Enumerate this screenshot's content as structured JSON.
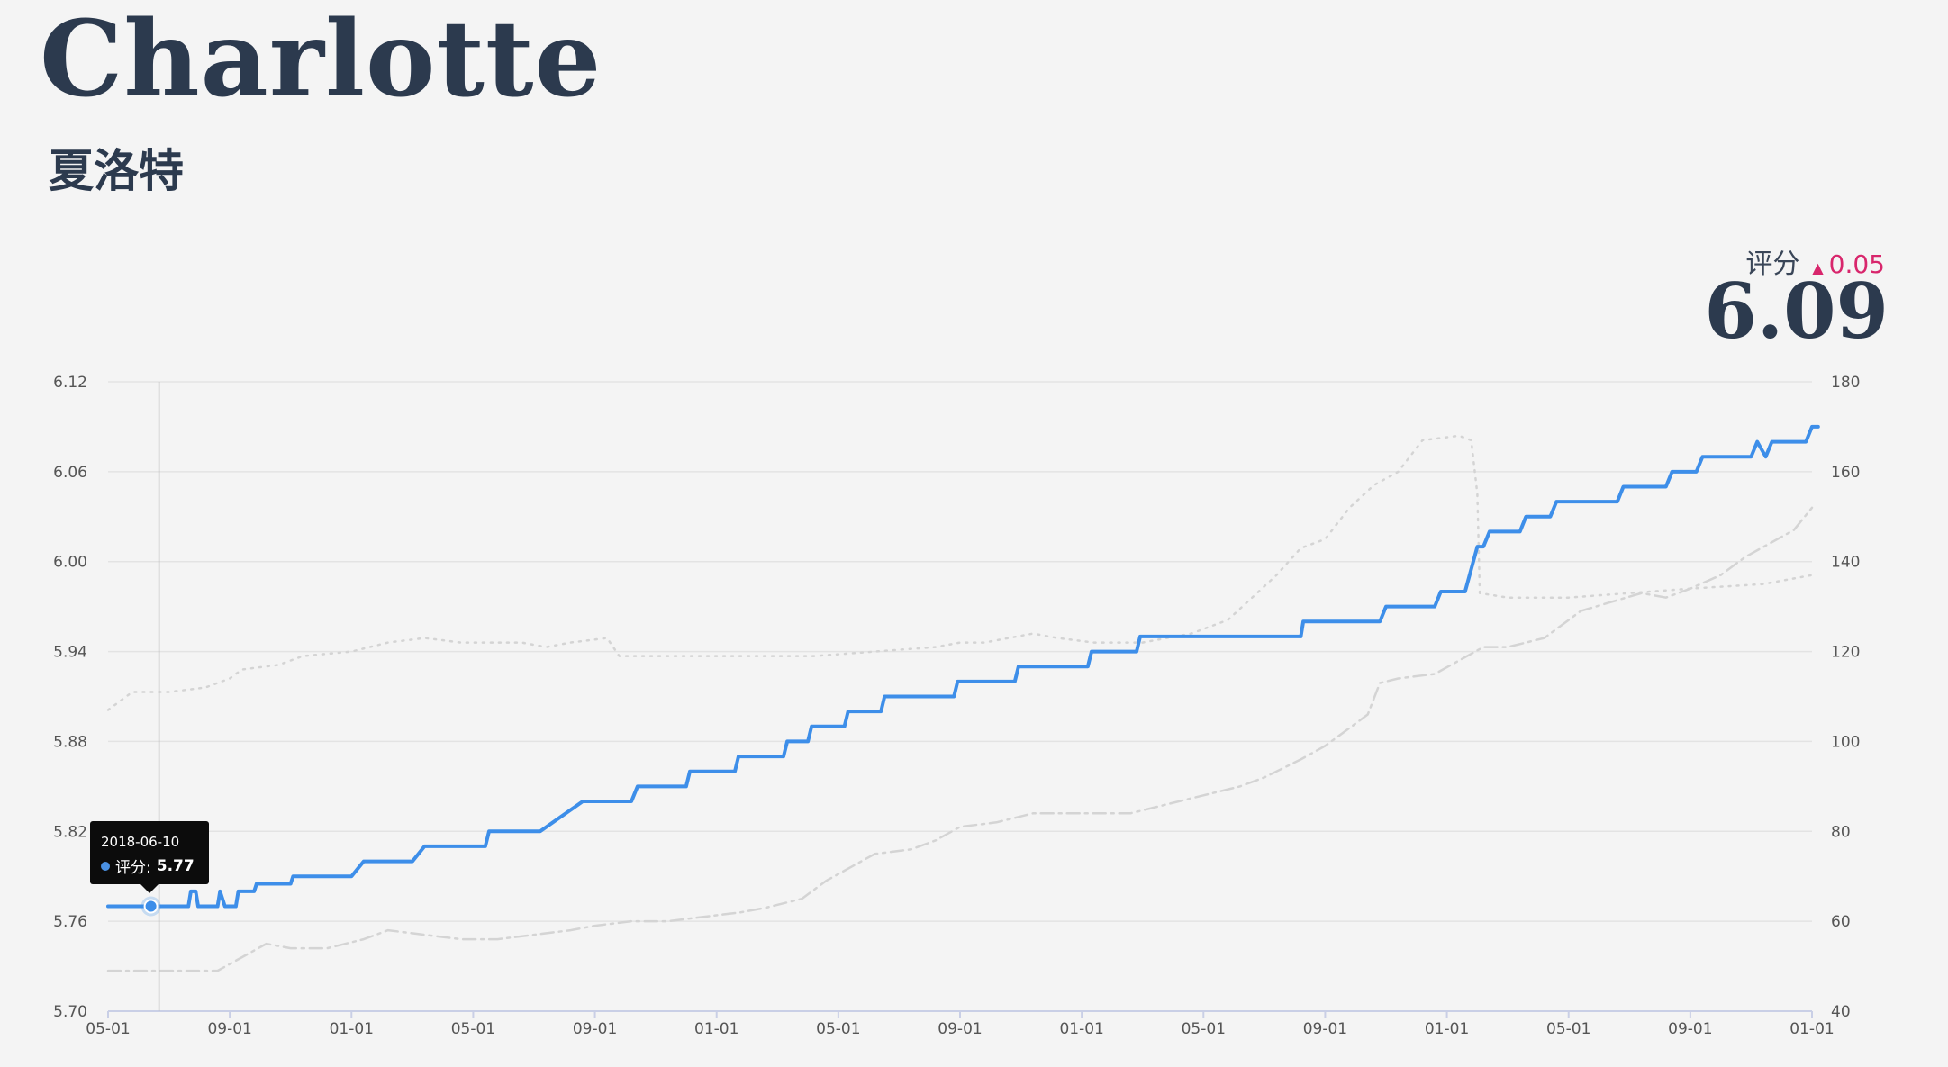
{
  "header": {
    "title": "Charlotte",
    "subtitle": "夏洛特"
  },
  "score": {
    "label": "评分",
    "delta": "0.05",
    "value": "6.09"
  },
  "tooltip": {
    "date": "2018-06-10",
    "label": "评分:",
    "value": "5.77"
  },
  "colors": {
    "rating": "#3d8ee9",
    "delta": "#d8266c",
    "grey": "#d4d4d4",
    "grid": "#e3e3e3",
    "axis": "#c9cfe6"
  },
  "chart_data": {
    "type": "line",
    "title": "",
    "xlabel": "",
    "ylabel": "",
    "x_ticks": [
      "05-01",
      "09-01",
      "01-01",
      "05-01",
      "09-01",
      "01-01",
      "05-01",
      "09-01",
      "01-01",
      "05-01",
      "09-01",
      "01-01",
      "05-01",
      "09-01",
      "01-01"
    ],
    "y_left_ticks": [
      "6.12",
      "6.06",
      "6.00",
      "5.94",
      "5.88",
      "5.82",
      "5.76",
      "5.70"
    ],
    "y_right_ticks": [
      "180",
      "160",
      "140",
      "120",
      "100",
      "80",
      "60",
      "40"
    ],
    "ylim_left": [
      5.7,
      6.12
    ],
    "ylim_right": [
      40,
      180
    ],
    "grid": true,
    "highlight": {
      "x": 0.33,
      "y": 5.77
    },
    "series": [
      {
        "axis": "left",
        "style": "solid",
        "points": [
          [
            0,
            5.77
          ],
          [
            0.66,
            5.77
          ],
          [
            0.68,
            5.78
          ],
          [
            0.72,
            5.78
          ],
          [
            0.74,
            5.77
          ],
          [
            0.9,
            5.77
          ],
          [
            0.92,
            5.78
          ],
          [
            0.96,
            5.77
          ],
          [
            1.05,
            5.77
          ],
          [
            1.07,
            5.78
          ],
          [
            1.2,
            5.78
          ],
          [
            1.22,
            5.785
          ],
          [
            1.5,
            5.785
          ],
          [
            1.52,
            5.79
          ],
          [
            2.0,
            5.79
          ],
          [
            2.1,
            5.8
          ],
          [
            2.5,
            5.8
          ],
          [
            2.6,
            5.81
          ],
          [
            3.1,
            5.81
          ],
          [
            3.13,
            5.82
          ],
          [
            3.55,
            5.82
          ],
          [
            3.9,
            5.84
          ],
          [
            4.3,
            5.84
          ],
          [
            4.35,
            5.85
          ],
          [
            4.75,
            5.85
          ],
          [
            4.78,
            5.86
          ],
          [
            5.15,
            5.86
          ],
          [
            5.18,
            5.87
          ],
          [
            5.55,
            5.87
          ],
          [
            5.58,
            5.88
          ],
          [
            5.75,
            5.88
          ],
          [
            5.78,
            5.89
          ],
          [
            6.05,
            5.89
          ],
          [
            6.08,
            5.9
          ],
          [
            6.35,
            5.9
          ],
          [
            6.38,
            5.91
          ],
          [
            6.95,
            5.91
          ],
          [
            6.98,
            5.92
          ],
          [
            7.45,
            5.92
          ],
          [
            7.48,
            5.93
          ],
          [
            8.05,
            5.93
          ],
          [
            8.08,
            5.94
          ],
          [
            8.45,
            5.94
          ],
          [
            8.48,
            5.95
          ],
          [
            9.8,
            5.95
          ],
          [
            9.82,
            5.96
          ],
          [
            10.45,
            5.96
          ],
          [
            10.5,
            5.97
          ],
          [
            10.9,
            5.97
          ],
          [
            10.95,
            5.98
          ],
          [
            11.15,
            5.98
          ],
          [
            11.25,
            6.01
          ],
          [
            11.3,
            6.01
          ],
          [
            11.35,
            6.02
          ],
          [
            11.6,
            6.02
          ],
          [
            11.65,
            6.03
          ],
          [
            11.85,
            6.03
          ],
          [
            11.9,
            6.04
          ],
          [
            12.4,
            6.04
          ],
          [
            12.45,
            6.05
          ],
          [
            12.8,
            6.05
          ],
          [
            12.85,
            6.06
          ],
          [
            13.05,
            6.06
          ],
          [
            13.1,
            6.07
          ],
          [
            13.5,
            6.07
          ],
          [
            13.55,
            6.08
          ],
          [
            13.62,
            6.07
          ],
          [
            13.67,
            6.08
          ],
          [
            13.95,
            6.08
          ],
          [
            14.0,
            6.09
          ],
          [
            14.05,
            6.09
          ]
        ]
      },
      {
        "axis": "right",
        "style": "dotted",
        "points": [
          [
            0,
            107
          ],
          [
            0.2,
            111
          ],
          [
            0.5,
            111
          ],
          [
            0.8,
            112
          ],
          [
            1.0,
            114
          ],
          [
            1.1,
            116
          ],
          [
            1.4,
            117
          ],
          [
            1.6,
            119
          ],
          [
            2.0,
            120
          ],
          [
            2.3,
            122
          ],
          [
            2.6,
            123
          ],
          [
            2.9,
            122
          ],
          [
            3.4,
            122
          ],
          [
            3.6,
            121
          ],
          [
            3.8,
            122
          ],
          [
            4.1,
            123
          ],
          [
            4.2,
            119
          ],
          [
            4.6,
            119
          ],
          [
            5.2,
            119
          ],
          [
            5.8,
            119
          ],
          [
            6.3,
            120
          ],
          [
            6.8,
            121
          ],
          [
            7.0,
            122
          ],
          [
            7.2,
            122
          ],
          [
            7.4,
            123
          ],
          [
            7.6,
            124
          ],
          [
            7.8,
            123
          ],
          [
            8.1,
            122
          ],
          [
            8.5,
            122
          ],
          [
            8.9,
            124
          ],
          [
            9.2,
            127
          ],
          [
            9.4,
            132
          ],
          [
            9.6,
            137
          ],
          [
            9.8,
            143
          ],
          [
            10.0,
            145
          ],
          [
            10.2,
            152
          ],
          [
            10.4,
            157
          ],
          [
            10.6,
            160
          ],
          [
            10.8,
            167
          ],
          [
            11.1,
            168
          ],
          [
            11.2,
            167
          ],
          [
            11.25,
            155
          ],
          [
            11.27,
            133
          ],
          [
            11.5,
            132
          ],
          [
            12.0,
            132
          ],
          [
            12.5,
            133
          ],
          [
            13.0,
            134
          ],
          [
            13.6,
            135
          ],
          [
            14.0,
            137
          ]
        ]
      },
      {
        "axis": "right",
        "style": "dashdot",
        "points": [
          [
            0,
            49
          ],
          [
            0.5,
            49
          ],
          [
            0.9,
            49
          ],
          [
            1.1,
            52
          ],
          [
            1.3,
            55
          ],
          [
            1.5,
            54
          ],
          [
            1.8,
            54
          ],
          [
            2.1,
            56
          ],
          [
            2.3,
            58
          ],
          [
            2.6,
            57
          ],
          [
            2.9,
            56
          ],
          [
            3.2,
            56
          ],
          [
            3.5,
            57
          ],
          [
            3.8,
            58
          ],
          [
            4.0,
            59
          ],
          [
            4.3,
            60
          ],
          [
            4.6,
            60
          ],
          [
            4.9,
            61
          ],
          [
            5.2,
            62
          ],
          [
            5.4,
            63
          ],
          [
            5.7,
            65
          ],
          [
            5.9,
            69
          ],
          [
            6.1,
            72
          ],
          [
            6.3,
            75
          ],
          [
            6.6,
            76
          ],
          [
            6.8,
            78
          ],
          [
            7.0,
            81
          ],
          [
            7.3,
            82
          ],
          [
            7.6,
            84
          ],
          [
            7.8,
            84
          ],
          [
            8.1,
            84
          ],
          [
            8.4,
            84
          ],
          [
            8.7,
            86
          ],
          [
            9.0,
            88
          ],
          [
            9.3,
            90
          ],
          [
            9.5,
            92
          ],
          [
            9.8,
            96
          ],
          [
            10.0,
            99
          ],
          [
            10.2,
            103
          ],
          [
            10.35,
            106
          ],
          [
            10.45,
            113
          ],
          [
            10.6,
            114
          ],
          [
            10.9,
            115
          ],
          [
            11.1,
            118
          ],
          [
            11.3,
            121
          ],
          [
            11.5,
            121
          ],
          [
            11.8,
            123
          ],
          [
            11.95,
            126
          ],
          [
            12.1,
            129
          ],
          [
            12.35,
            131
          ],
          [
            12.6,
            133
          ],
          [
            12.8,
            132
          ],
          [
            13.0,
            134
          ],
          [
            13.25,
            137
          ],
          [
            13.45,
            141
          ],
          [
            13.65,
            144
          ],
          [
            13.85,
            147
          ],
          [
            14.0,
            152
          ]
        ]
      }
    ]
  }
}
